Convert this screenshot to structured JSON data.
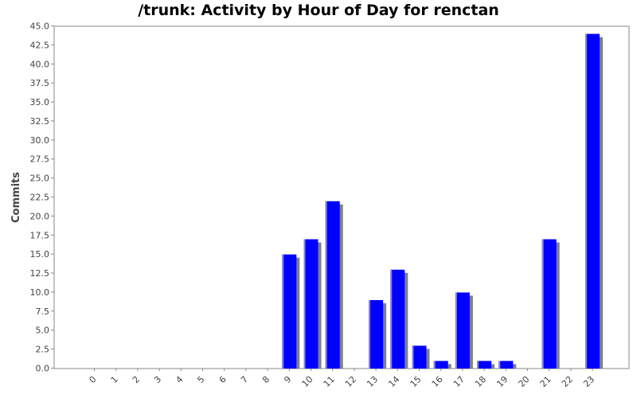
{
  "chart_data": {
    "type": "bar",
    "title": "/trunk: Activity by Hour of Day for renctan",
    "xlabel": "",
    "ylabel": "Commits",
    "categories": [
      "0",
      "1",
      "2",
      "3",
      "4",
      "5",
      "6",
      "7",
      "8",
      "9",
      "10",
      "11",
      "12",
      "13",
      "14",
      "15",
      "16",
      "17",
      "18",
      "19",
      "20",
      "21",
      "22",
      "23"
    ],
    "values": [
      0,
      0,
      0,
      0,
      0,
      0,
      0,
      0,
      0,
      15,
      17,
      22,
      0,
      9,
      13,
      3,
      1,
      10,
      1,
      1,
      0,
      17,
      0,
      44
    ],
    "ylim": [
      0,
      45
    ],
    "yticks": [
      "0.0",
      "2.5",
      "5.0",
      "7.5",
      "10.0",
      "12.5",
      "15.0",
      "17.5",
      "20.0",
      "22.5",
      "25.0",
      "27.5",
      "30.0",
      "32.5",
      "35.0",
      "37.5",
      "40.0",
      "42.5",
      "45.0"
    ],
    "grid": false,
    "legend": "none",
    "bar_color": "#0000ff",
    "shadow_color": "#808080"
  }
}
